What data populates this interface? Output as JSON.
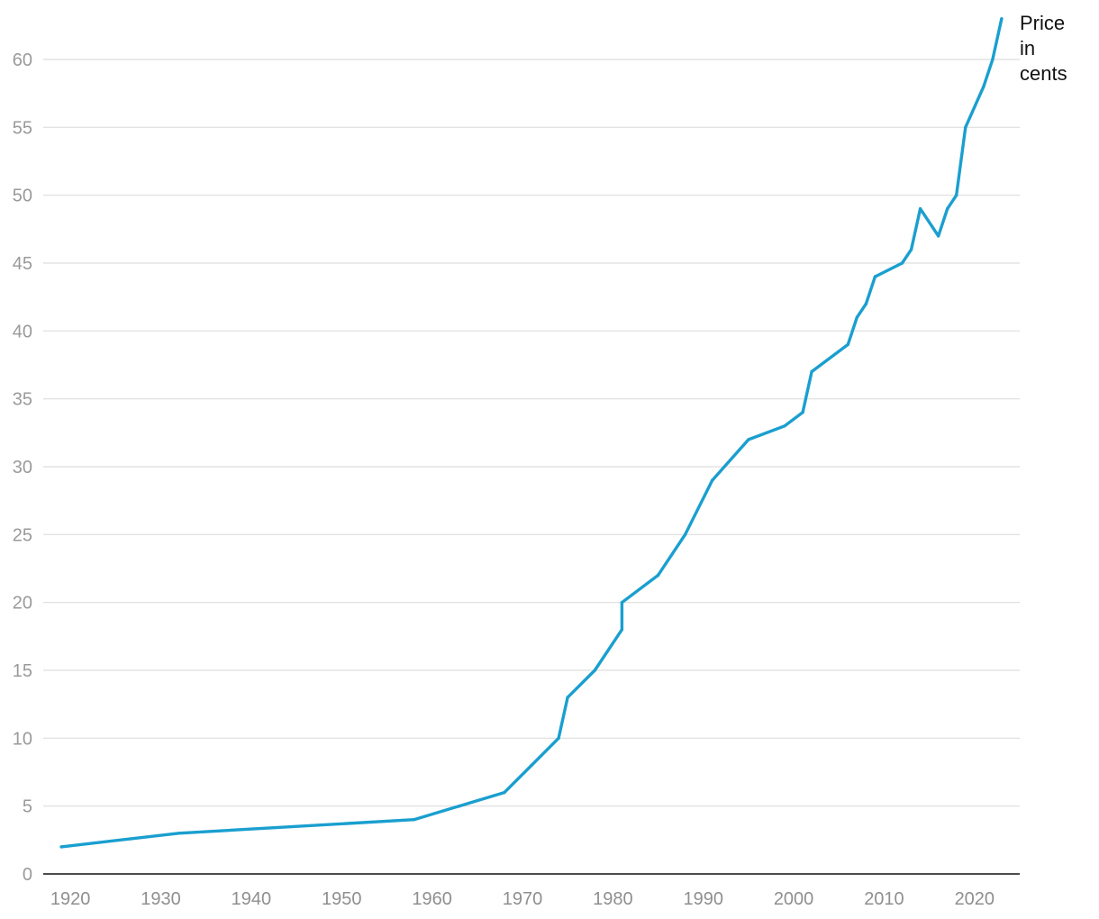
{
  "chart_data": {
    "type": "line",
    "title": "",
    "xlabel": "",
    "ylabel": "",
    "xlim": [
      1917,
      2025
    ],
    "ylim": [
      0,
      63
    ],
    "x_ticks": [
      1920,
      1930,
      1940,
      1950,
      1960,
      1970,
      1980,
      1990,
      2000,
      2010,
      2020
    ],
    "y_ticks": [
      0,
      5,
      10,
      15,
      20,
      25,
      30,
      35,
      40,
      45,
      50,
      55,
      60
    ],
    "grid": true,
    "line_color": "#1a9fcf",
    "series_label_lines": [
      "Price",
      "in",
      "cents"
    ],
    "series": [
      {
        "name": "",
        "points": [
          [
            1919,
            2
          ],
          [
            1932,
            3
          ],
          [
            1958,
            4
          ],
          [
            1963,
            5
          ],
          [
            1968,
            6
          ],
          [
            1971,
            8
          ],
          [
            1974,
            10
          ],
          [
            1975,
            13
          ],
          [
            1978,
            15
          ],
          [
            1981,
            18
          ],
          [
            1981,
            20
          ],
          [
            1985,
            22
          ],
          [
            1988,
            25
          ],
          [
            1991,
            29
          ],
          [
            1995,
            32
          ],
          [
            1999,
            33
          ],
          [
            2001,
            34
          ],
          [
            2002,
            37
          ],
          [
            2006,
            39
          ],
          [
            2007,
            41
          ],
          [
            2008,
            42
          ],
          [
            2009,
            44
          ],
          [
            2012,
            45
          ],
          [
            2013,
            46
          ],
          [
            2014,
            49
          ],
          [
            2016,
            47
          ],
          [
            2017,
            49
          ],
          [
            2018,
            50
          ],
          [
            2019,
            55
          ],
          [
            2021,
            58
          ],
          [
            2022,
            60
          ],
          [
            2023,
            63
          ]
        ]
      }
    ]
  }
}
